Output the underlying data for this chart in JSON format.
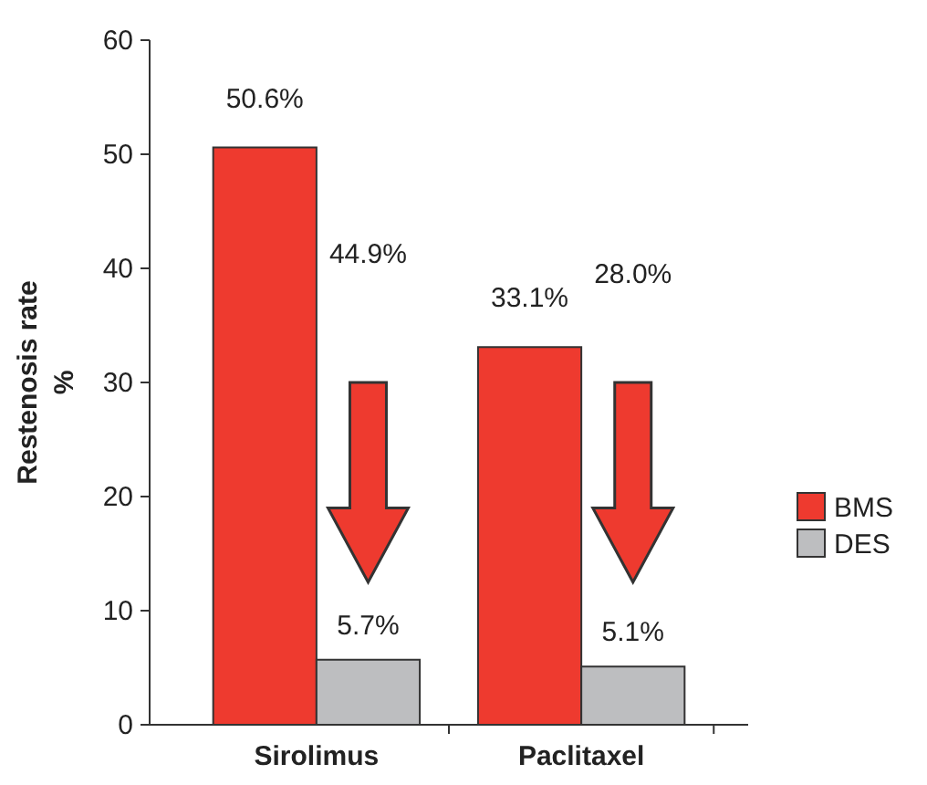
{
  "chart_data": {
    "type": "bar",
    "ylabel": "Restenosis rate %",
    "categories": [
      "Sirolimus",
      "Paclitaxel"
    ],
    "series": [
      {
        "name": "BMS",
        "color": "#ee3a2f",
        "values": [
          50.6,
          33.1
        ],
        "value_labels": [
          "50.6%",
          "33.1%"
        ]
      },
      {
        "name": "DES",
        "color": "#bdbec0",
        "values": [
          5.7,
          5.1
        ],
        "value_labels": [
          "5.7%",
          "5.1%"
        ]
      }
    ],
    "annotations": [
      "44.9%",
      "28.0%"
    ],
    "ylim": [
      0,
      60
    ],
    "yticks": [
      0,
      10,
      20,
      30,
      40,
      50,
      60
    ],
    "legend": "right"
  }
}
